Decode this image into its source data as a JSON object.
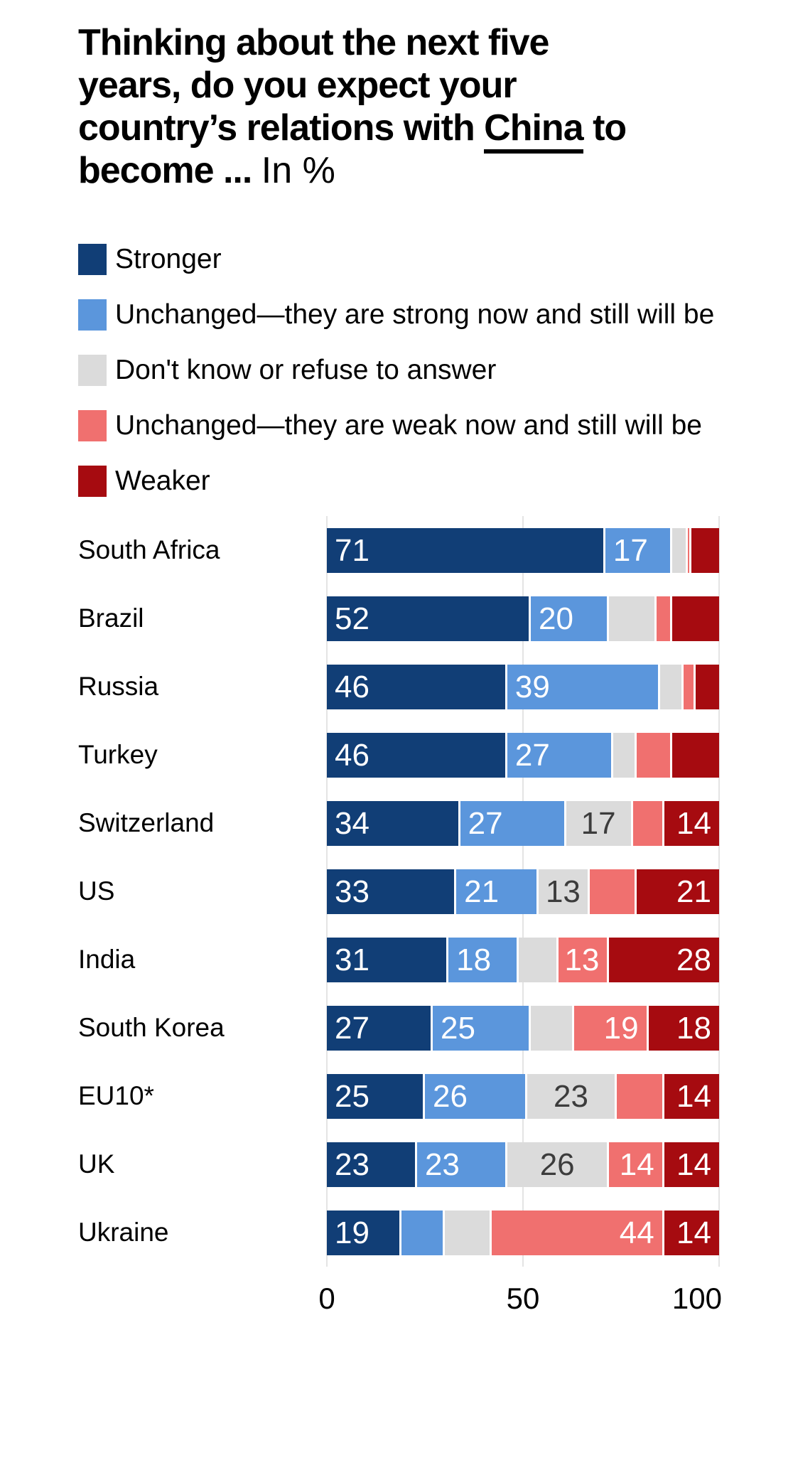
{
  "title": {
    "full_text": "Thinking about the next five years, do you expect your country’s relations with China to become ... In %",
    "lines": [
      [
        {
          "text": "Thinking about the next five",
          "weight": "bold"
        }
      ],
      [
        {
          "text": "years, do you expect your",
          "weight": "bold"
        }
      ],
      [
        {
          "text": "country’s relations with ",
          "weight": "bold"
        },
        {
          "text": "China",
          "weight": "bold",
          "underline": true
        },
        {
          "text": " to",
          "weight": "bold"
        }
      ],
      [
        {
          "text": "become ... ",
          "weight": "bold"
        },
        {
          "text": "In %",
          "weight": "regular"
        }
      ]
    ]
  },
  "legend": [
    {
      "label": "Stronger",
      "color": "#113E76"
    },
    {
      "label": "Unchanged—they are strong now and still will be",
      "color": "#5B96DC"
    },
    {
      "label": "Don't know or refuse to answer",
      "color": "#DBDBDB"
    },
    {
      "label": "Unchanged—they are weak now and still will be",
      "color": "#F0706F"
    },
    {
      "label": "Weaker",
      "color": "#A60B10"
    }
  ],
  "chart_data": {
    "type": "bar",
    "orientation": "horizontal",
    "stacked": true,
    "title": "Thinking about the next five years, do you expect your country’s relations with China to become ... In %",
    "xlabel": "",
    "ylabel": "",
    "xlim": [
      0,
      100
    ],
    "x_ticks": [
      0,
      50,
      100
    ],
    "grid": "vertical-light",
    "legend_position": "top-left",
    "value_label_min": 13,
    "categories": [
      "South Africa",
      "Brazil",
      "Russia",
      "Turkey",
      "Switzerland",
      "US",
      "India",
      "South Korea",
      "EU10*",
      "UK",
      "Ukraine"
    ],
    "series": [
      {
        "name": "Stronger",
        "color": "#113E76",
        "label_color": "#FFFFFF",
        "label_align": "left",
        "values": [
          71,
          52,
          46,
          46,
          34,
          33,
          31,
          27,
          25,
          23,
          19
        ]
      },
      {
        "name": "Unchanged—they are strong now and still will be",
        "color": "#5B96DC",
        "label_color": "#FFFFFF",
        "label_align": "left",
        "values": [
          17,
          20,
          39,
          27,
          27,
          21,
          18,
          25,
          26,
          23,
          11
        ]
      },
      {
        "name": "Don't know or refuse to answer",
        "color": "#DBDBDB",
        "label_color": "#3C3C3C",
        "label_align": "center",
        "values": [
          4,
          12,
          6,
          6,
          17,
          13,
          10,
          11,
          23,
          26,
          12
        ]
      },
      {
        "name": "Unchanged—they are weak now and still will be",
        "color": "#F0706F",
        "label_color": "#FFFFFF",
        "label_align": "right",
        "values": [
          1,
          4,
          3,
          9,
          8,
          12,
          13,
          19,
          12,
          14,
          44
        ]
      },
      {
        "name": "Weaker",
        "color": "#A60B10",
        "label_color": "#FFFFFF",
        "label_align": "right",
        "values": [
          7,
          12,
          6,
          12,
          14,
          21,
          28,
          18,
          14,
          14,
          14
        ]
      }
    ]
  }
}
